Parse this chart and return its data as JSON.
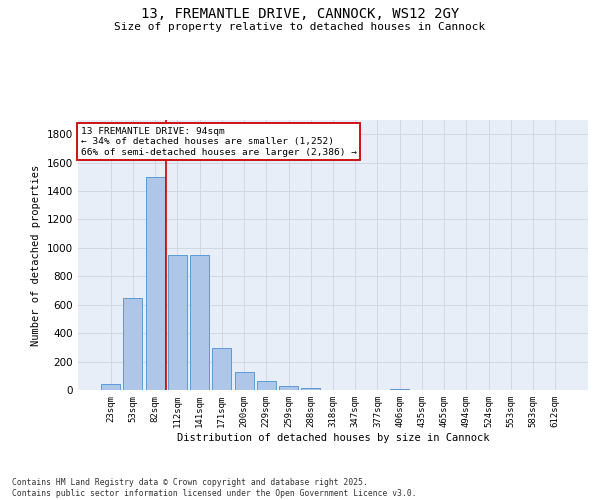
{
  "title1": "13, FREMANTLE DRIVE, CANNOCK, WS12 2GY",
  "title2": "Size of property relative to detached houses in Cannock",
  "xlabel": "Distribution of detached houses by size in Cannock",
  "ylabel": "Number of detached properties",
  "categories": [
    "23sqm",
    "53sqm",
    "82sqm",
    "112sqm",
    "141sqm",
    "171sqm",
    "200sqm",
    "229sqm",
    "259sqm",
    "288sqm",
    "318sqm",
    "347sqm",
    "377sqm",
    "406sqm",
    "435sqm",
    "465sqm",
    "494sqm",
    "524sqm",
    "553sqm",
    "583sqm",
    "612sqm"
  ],
  "values": [
    40,
    650,
    1500,
    950,
    950,
    295,
    130,
    60,
    25,
    15,
    0,
    0,
    0,
    10,
    0,
    0,
    0,
    0,
    0,
    0,
    0
  ],
  "bar_color": "#aec6e8",
  "bar_edge_color": "#5b9bd5",
  "vline_x_idx": 2.5,
  "vline_color": "#cc0000",
  "annotation_text": "13 FREMANTLE DRIVE: 94sqm\n← 34% of detached houses are smaller (1,252)\n66% of semi-detached houses are larger (2,386) →",
  "annotation_box_edgecolor": "#cc0000",
  "ylim_max": 1900,
  "yticks": [
    0,
    200,
    400,
    600,
    800,
    1000,
    1200,
    1400,
    1600,
    1800
  ],
  "grid_color": "#ccd4e0",
  "background_color": "#e8eef8",
  "footer_text": "Contains HM Land Registry data © Crown copyright and database right 2025.\nContains public sector information licensed under the Open Government Licence v3.0."
}
